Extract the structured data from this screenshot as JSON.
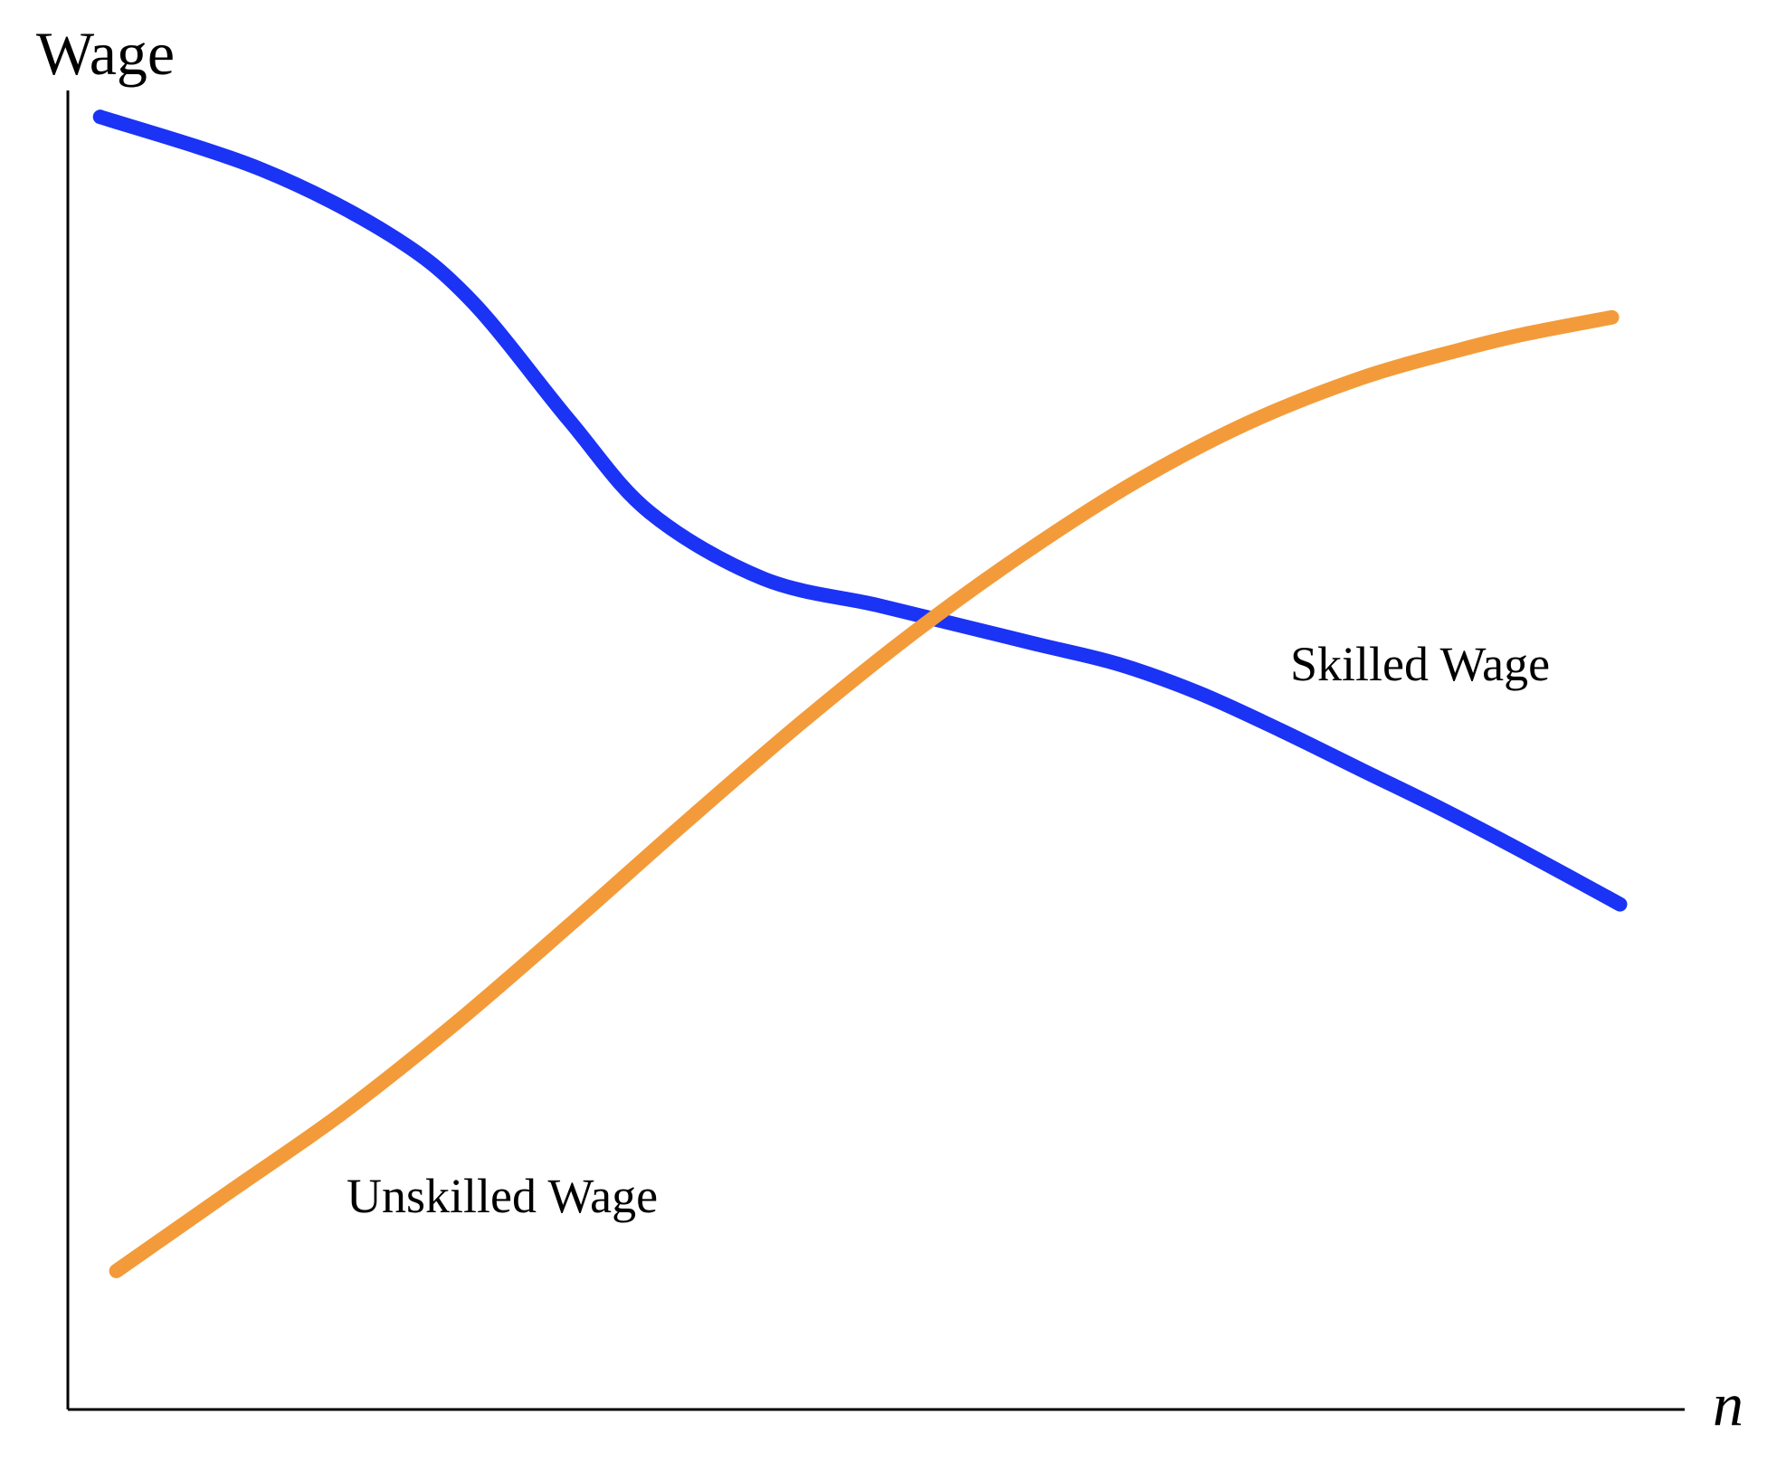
{
  "chart_data": {
    "type": "line",
    "title": "",
    "xlabel": "n",
    "ylabel": "Wage",
    "xlim": [
      0,
      100
    ],
    "ylim": [
      0,
      100
    ],
    "grid": false,
    "legend": "none",
    "series": [
      {
        "name": "Skilled Wage",
        "color": "#1a33f5",
        "x": [
          2,
          12,
          20,
          25,
          31,
          36,
          43,
          50,
          55,
          60,
          65,
          70,
          75,
          80,
          85,
          90,
          96
        ],
        "y": [
          98,
          94,
          89,
          84,
          75,
          68,
          63,
          61,
          59.5,
          58,
          56.5,
          54.3,
          51.5,
          48.5,
          45.5,
          42.3,
          38.3
        ]
      },
      {
        "name": "Unskilled Wage",
        "color": "#f39b3a",
        "x": [
          3,
          10,
          17,
          24,
          31,
          38,
          45,
          52,
          59,
          66,
          73,
          80,
          86,
          90,
          95.5
        ],
        "y": [
          10.5,
          16.5,
          22.5,
          29.3,
          36.7,
          44.3,
          51.7,
          58.6,
          64.8,
          70.3,
          74.8,
          78.2,
          80.3,
          81.5,
          82.8
        ]
      }
    ]
  }
}
